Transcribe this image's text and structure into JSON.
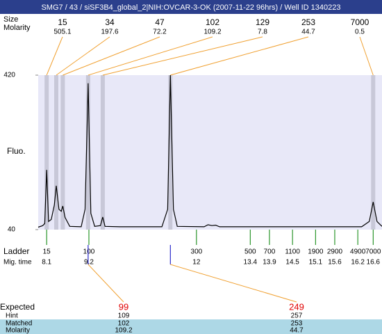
{
  "chart_data": {
    "type": "line",
    "title": "SMG7 / 43 / siSF3B4_global_2|NIH:OVCAR-3-OK (2007-11-22 96hrs) / Well ID 1340223",
    "y_label": "Fluo.",
    "ylim": [
      40,
      420
    ],
    "yticks": [
      40,
      420
    ],
    "xlim": [
      7.88,
      16.83
    ],
    "color": "#000000",
    "x": [
      7.88,
      8.0,
      8.05,
      8.1,
      8.15,
      8.22,
      8.3,
      8.35,
      8.42,
      8.48,
      8.52,
      8.58,
      8.7,
      9.0,
      9.1,
      9.18,
      9.25,
      9.35,
      9.5,
      9.56,
      9.62,
      10.0,
      11.1,
      11.25,
      11.32,
      11.4,
      11.5,
      12.2,
      12.3,
      12.4,
      12.5,
      12.6,
      16.3,
      16.5,
      16.6,
      16.7,
      16.83
    ],
    "values": [
      46,
      50,
      55,
      187,
      60,
      65,
      100,
      148,
      90,
      85,
      98,
      70,
      48,
      47,
      90,
      400,
      80,
      48,
      50,
      71,
      48,
      47,
      47,
      90,
      420,
      90,
      48,
      47,
      52,
      50,
      51,
      47,
      47,
      60,
      108,
      60,
      48
    ],
    "peaks": {
      "size_label": "Size",
      "molarity_label": "Molarity",
      "sizes": [
        15,
        34,
        47,
        102,
        129,
        253,
        7000
      ],
      "molarities": [
        505.1,
        197.6,
        72.2,
        109.2,
        7.8,
        44.7,
        0.5
      ],
      "times": [
        8.1,
        8.35,
        8.52,
        9.18,
        9.56,
        11.32,
        16.6
      ],
      "band_color": "#c8c8d8"
    },
    "ladder": {
      "label": "Ladder",
      "time_label": "Mig. time",
      "sizes": [
        15,
        100,
        300,
        500,
        700,
        1100,
        1900,
        2900,
        4900,
        7000
      ],
      "times": [
        8.1,
        9.2,
        12,
        13.4,
        13.9,
        14.5,
        15.1,
        15.6,
        16.2,
        16.6
      ],
      "color": "#008000"
    },
    "expected": {
      "labels": [
        "Expected",
        "Hint",
        "Matched",
        "Molarity"
      ],
      "columns": [
        {
          "expected": 99,
          "hint": 109,
          "matched": 102,
          "molarity": 109.2,
          "time": 9.18
        },
        {
          "expected": 249,
          "hint": 257,
          "matched": 253,
          "molarity": 44.7,
          "time": 11.32
        }
      ]
    }
  }
}
